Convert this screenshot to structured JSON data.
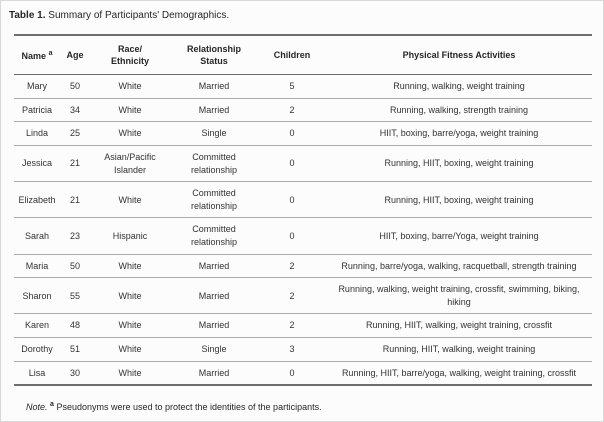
{
  "title": {
    "label": "Table 1.",
    "text": " Summary of Participants' Demographics."
  },
  "colors": {
    "rule_dark": "#6e6e6e",
    "header_rule": "#6a6a6a",
    "row_separator": "#aaaaaa",
    "text": "#333333",
    "background": "#fcfcfc"
  },
  "table": {
    "columns": [
      {
        "key": "name",
        "label": "Name",
        "sup": "a"
      },
      {
        "key": "age",
        "label": "Age"
      },
      {
        "key": "race",
        "label": "Race/\nEthnicity"
      },
      {
        "key": "relationship",
        "label": "Relationship\nStatus"
      },
      {
        "key": "children",
        "label": "Children"
      },
      {
        "key": "activities",
        "label": "Physical Fitness Activities"
      }
    ],
    "rows": [
      {
        "name": "Mary",
        "age": "50",
        "race": "White",
        "relationship": "Married",
        "children": "5",
        "activities": "Running, walking, weight training"
      },
      {
        "name": "Patricia",
        "age": "34",
        "race": "White",
        "relationship": "Married",
        "children": "2",
        "activities": "Running, walking, strength training"
      },
      {
        "name": "Linda",
        "age": "25",
        "race": "White",
        "relationship": "Single",
        "children": "0",
        "activities": "HIIT, boxing, barre/yoga, weight training"
      },
      {
        "name": "Jessica",
        "age": "21",
        "race": "Asian/Pacific Islander",
        "relationship": "Committed relationship",
        "children": "0",
        "activities": "Running, HIIT, boxing, weight training"
      },
      {
        "name": "Elizabeth",
        "age": "21",
        "race": "White",
        "relationship": "Committed relationship",
        "children": "0",
        "activities": "Running, HIIT, boxing, weight training"
      },
      {
        "name": "Sarah",
        "age": "23",
        "race": "Hispanic",
        "relationship": "Committed relationship",
        "children": "0",
        "activities": "HIIT, boxing, barre/Yoga, weight training"
      },
      {
        "name": "Maria",
        "age": "50",
        "race": "White",
        "relationship": "Married",
        "children": "2",
        "activities": "Running, barre/yoga, walking, racquetball, strength training"
      },
      {
        "name": "Sharon",
        "age": "55",
        "race": "White",
        "relationship": "Married",
        "children": "2",
        "activities": "Running, walking, weight training, crossfit, swimming, biking, hiking"
      },
      {
        "name": "Karen",
        "age": "48",
        "race": "White",
        "relationship": "Married",
        "children": "2",
        "activities": "Running, HIIT, walking, weight training, crossfit"
      },
      {
        "name": "Dorothy",
        "age": "51",
        "race": "White",
        "relationship": "Single",
        "children": "3",
        "activities": "Running, HIIT, walking, weight training"
      },
      {
        "name": "Lisa",
        "age": "30",
        "race": "White",
        "relationship": "Married",
        "children": "0",
        "activities": "Running, HIIT, barre/yoga, walking, weight training, crossfit"
      }
    ]
  },
  "note": {
    "prefix": "Note.",
    "marker": "a",
    "text": " Pseudonyms were used to protect the identities of the participants."
  }
}
